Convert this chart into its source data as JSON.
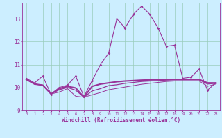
{
  "x": [
    0,
    1,
    2,
    3,
    4,
    5,
    6,
    7,
    8,
    9,
    10,
    11,
    12,
    13,
    14,
    15,
    16,
    17,
    18,
    19,
    20,
    21,
    22,
    23
  ],
  "line1": [
    10.4,
    10.2,
    10.5,
    9.7,
    10.0,
    10.1,
    10.5,
    9.6,
    10.3,
    11.0,
    11.5,
    13.0,
    12.6,
    13.2,
    13.55,
    13.2,
    12.6,
    11.8,
    11.85,
    10.4,
    10.45,
    10.8,
    9.88,
    10.2
  ],
  "line2": [
    10.35,
    10.15,
    10.1,
    9.72,
    9.95,
    10.05,
    9.98,
    9.58,
    10.05,
    10.15,
    10.2,
    10.25,
    10.28,
    10.3,
    10.32,
    10.33,
    10.34,
    10.35,
    10.35,
    10.35,
    10.35,
    10.35,
    10.2,
    10.2
  ],
  "line3": [
    10.35,
    10.15,
    10.1,
    9.72,
    9.9,
    10.0,
    9.88,
    9.58,
    9.85,
    9.95,
    10.08,
    10.12,
    10.18,
    10.22,
    10.26,
    10.28,
    10.3,
    10.32,
    10.33,
    10.33,
    10.33,
    10.33,
    10.15,
    10.18
  ],
  "line4": [
    10.35,
    10.15,
    10.1,
    9.72,
    9.8,
    9.95,
    9.62,
    9.58,
    9.68,
    9.78,
    9.9,
    9.96,
    10.02,
    10.08,
    10.14,
    10.18,
    10.22,
    10.26,
    10.28,
    10.28,
    10.28,
    10.28,
    10.05,
    10.15
  ],
  "line_color": "#993399",
  "bg_color": "#cceeff",
  "grid_color": "#99ccbb",
  "xlabel": "Windchill (Refroidissement éolien,°C)",
  "ylim": [
    9.0,
    13.7
  ],
  "xlim": [
    -0.5,
    23.5
  ],
  "yticks": [
    9,
    10,
    11,
    12,
    13
  ],
  "xticks": [
    0,
    1,
    2,
    3,
    4,
    5,
    6,
    7,
    8,
    9,
    10,
    11,
    12,
    13,
    14,
    15,
    16,
    17,
    18,
    19,
    20,
    21,
    22,
    23
  ]
}
